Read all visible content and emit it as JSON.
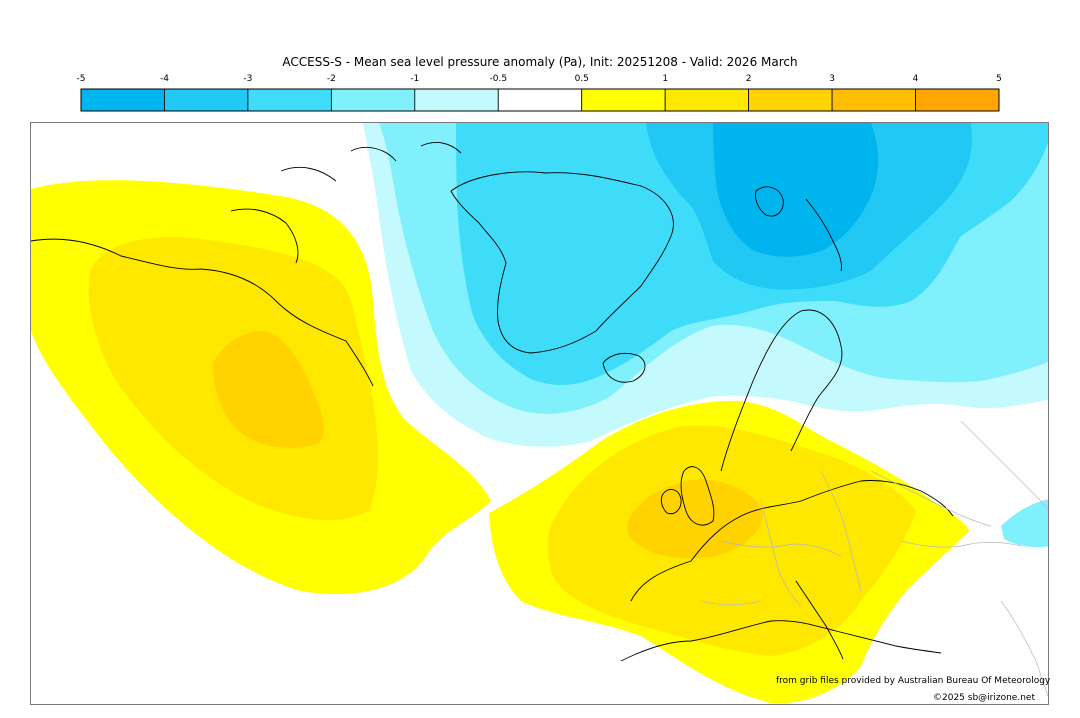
{
  "title": "ACCESS-S - Mean sea level pressure anomaly (Pa), Init: 20251208 - Valid: 2026 March",
  "colorbar": {
    "ticks": [
      "-5",
      "-4",
      "-3",
      "-2",
      "-1",
      "-0.5",
      "0.5",
      "1",
      "2",
      "3",
      "4",
      "5"
    ],
    "colors": [
      "#00b4ee",
      "#22c8f4",
      "#3fdcfa",
      "#80f0fc",
      "#c4fafd",
      "#ffffff",
      "#ffff00",
      "#ffe800",
      "#ffd200",
      "#ffbe00",
      "#ffa500"
    ]
  },
  "colors": {
    "yellow": "#ffff00",
    "light_orange": "#ffe800",
    "orange": "#ffd200",
    "cyan_faint": "#c4fafd",
    "cyan_light": "#80f0fc",
    "cyan_mid": "#3fdcfa",
    "cyan_dark": "#22c8f4",
    "blue": "#00b4ee",
    "coast": "#000000",
    "border": "#b8b8b8"
  },
  "credits": {
    "source": "from grib files provided by Australian Bureau Of Meteorology",
    "copyright": "©2025 sb@irizone.net"
  }
}
